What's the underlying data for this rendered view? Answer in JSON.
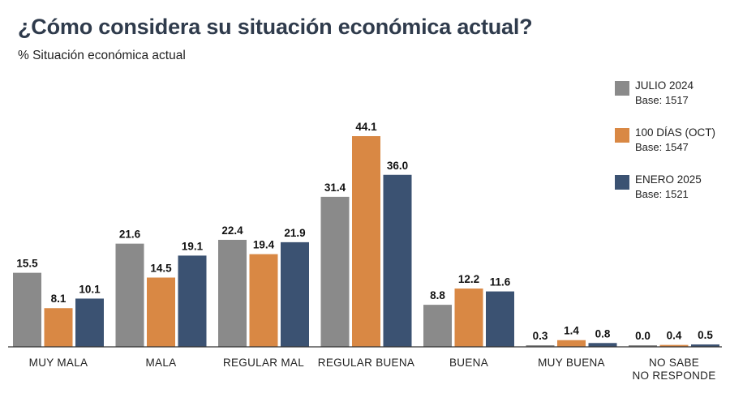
{
  "header": {
    "title": "¿Cómo considera su situación económica actual?",
    "subtitle": "% Situación económica actual"
  },
  "legend": [
    {
      "name": "JULIO 2024",
      "base": "Base: 1517"
    },
    {
      "name": "100 DÍAS (OCT)",
      "base": "Base: 1547"
    },
    {
      "name": "ENERO 2025",
      "base": "Base: 1521"
    }
  ],
  "chart_data": {
    "type": "bar",
    "title": "¿Cómo considera su situación económica actual?",
    "subtitle": "% Situación económica actual",
    "xlabel": "",
    "ylabel": "",
    "ylim": [
      0,
      44.1
    ],
    "grid": false,
    "legend_position": "top-right",
    "categories": [
      [
        "MUY MALA"
      ],
      [
        "MALA"
      ],
      [
        "REGULAR MAL"
      ],
      [
        "REGULAR BUENA"
      ],
      [
        "BUENA"
      ],
      [
        "MUY BUENA"
      ],
      [
        "NO SABE",
        "NO RESPONDE"
      ]
    ],
    "series": [
      {
        "name": "JULIO 2024",
        "color": "#8a8a8a",
        "values": [
          15.5,
          21.6,
          22.4,
          31.4,
          8.8,
          0.3,
          0.0
        ],
        "labels": [
          "15.5",
          "21.6",
          "22.4",
          "31.4",
          "8.8",
          "0.3",
          "0.0"
        ]
      },
      {
        "name": "100 DÍAS (OCT)",
        "color": "#d98844",
        "values": [
          8.1,
          14.5,
          19.4,
          44.1,
          12.2,
          1.4,
          0.4
        ],
        "labels": [
          "8.1",
          "14.5",
          "19.4",
          "44.1",
          "12.2",
          "1.4",
          "0.4"
        ]
      },
      {
        "name": "ENERO 2025",
        "color": "#3b5272",
        "values": [
          10.1,
          19.1,
          21.9,
          36.0,
          11.6,
          0.8,
          0.5
        ],
        "labels": [
          "10.1",
          "19.1",
          "21.9",
          "36.0",
          "11.6",
          "0.8",
          "0.5"
        ]
      }
    ]
  }
}
